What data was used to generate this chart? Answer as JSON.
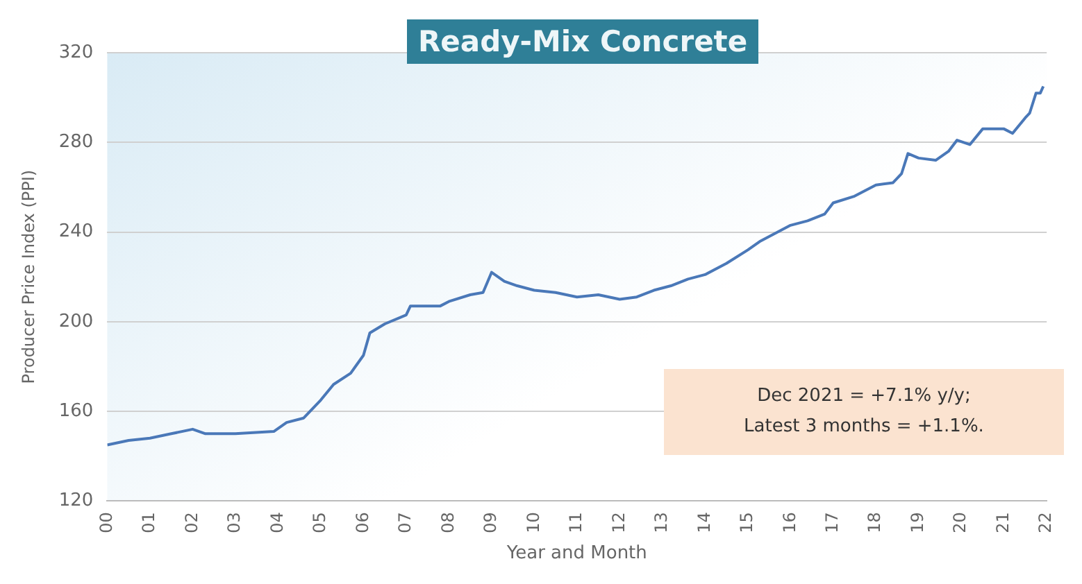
{
  "chart_data": {
    "type": "line",
    "title": "Ready-Mix Concrete",
    "xlabel": "Year and Month",
    "ylabel": "Producer Price Index (PPI)",
    "annotations": [
      "Dec 2021 = +7.1% y/y;\nLatest 3 months = +1.1%."
    ],
    "series": [
      {
        "color": "#4a78b8",
        "x": [
          2000,
          2000.5,
          2001,
          2001.5,
          2002,
          2002.3,
          2003,
          2003.9,
          2004.2,
          2004.6,
          2005,
          2005.3,
          2005.7,
          2006,
          2006.15,
          2006.5,
          2007,
          2007.1,
          2007.8,
          2008,
          2008.5,
          2008.8,
          2009,
          2009.3,
          2009.6,
          2010,
          2010.5,
          2011,
          2011.5,
          2012,
          2012.4,
          2012.8,
          2013.2,
          2013.6,
          2014,
          2014.5,
          2015,
          2015.3,
          2015.6,
          2016,
          2016.4,
          2016.8,
          2017,
          2017.5,
          2018,
          2018.4,
          2018.6,
          2018.75,
          2019,
          2019.4,
          2019.7,
          2019.9,
          2020.2,
          2020.5,
          2021,
          2021.2,
          2021.5,
          2021.6,
          2021.75,
          2021.85,
          2021.92
        ],
        "values": [
          145,
          147,
          148,
          150,
          152,
          150,
          150,
          151,
          155,
          157,
          165,
          172,
          177,
          185,
          195,
          199,
          203,
          207,
          207,
          209,
          212,
          213,
          222,
          218,
          216,
          214,
          213,
          211,
          212,
          210,
          211,
          214,
          216,
          219,
          221,
          226,
          232,
          236,
          239,
          243,
          245,
          248,
          253,
          256,
          261,
          262,
          266,
          275,
          273,
          272,
          276,
          281,
          279,
          286,
          286,
          284,
          291,
          293,
          302,
          302,
          305
        ]
      }
    ],
    "xlim": [
      2000,
      2022
    ],
    "xticks": [
      {
        "value": 2000,
        "label": "00"
      },
      {
        "value": 2001,
        "label": "01"
      },
      {
        "value": 2002,
        "label": "02"
      },
      {
        "value": 2003,
        "label": "03"
      },
      {
        "value": 2004,
        "label": "04"
      },
      {
        "value": 2005,
        "label": "05"
      },
      {
        "value": 2006,
        "label": "06"
      },
      {
        "value": 2007,
        "label": "07"
      },
      {
        "value": 2008,
        "label": "08"
      },
      {
        "value": 2009,
        "label": "09"
      },
      {
        "value": 2010,
        "label": "10"
      },
      {
        "value": 2011,
        "label": "11"
      },
      {
        "value": 2012,
        "label": "12"
      },
      {
        "value": 2013,
        "label": "13"
      },
      {
        "value": 2014,
        "label": "14"
      },
      {
        "value": 2015,
        "label": "15"
      },
      {
        "value": 2016,
        "label": "16"
      },
      {
        "value": 2017,
        "label": "17"
      },
      {
        "value": 2018,
        "label": "18"
      },
      {
        "value": 2019,
        "label": "19"
      },
      {
        "value": 2020,
        "label": "20"
      },
      {
        "value": 2021,
        "label": "21"
      },
      {
        "value": 2022,
        "label": "22"
      }
    ],
    "ylim": [
      120,
      320
    ],
    "yticks": [
      120,
      160,
      200,
      240,
      280,
      320
    ],
    "grid": "y",
    "legend": false,
    "marker": "none",
    "line_style": "solid"
  }
}
